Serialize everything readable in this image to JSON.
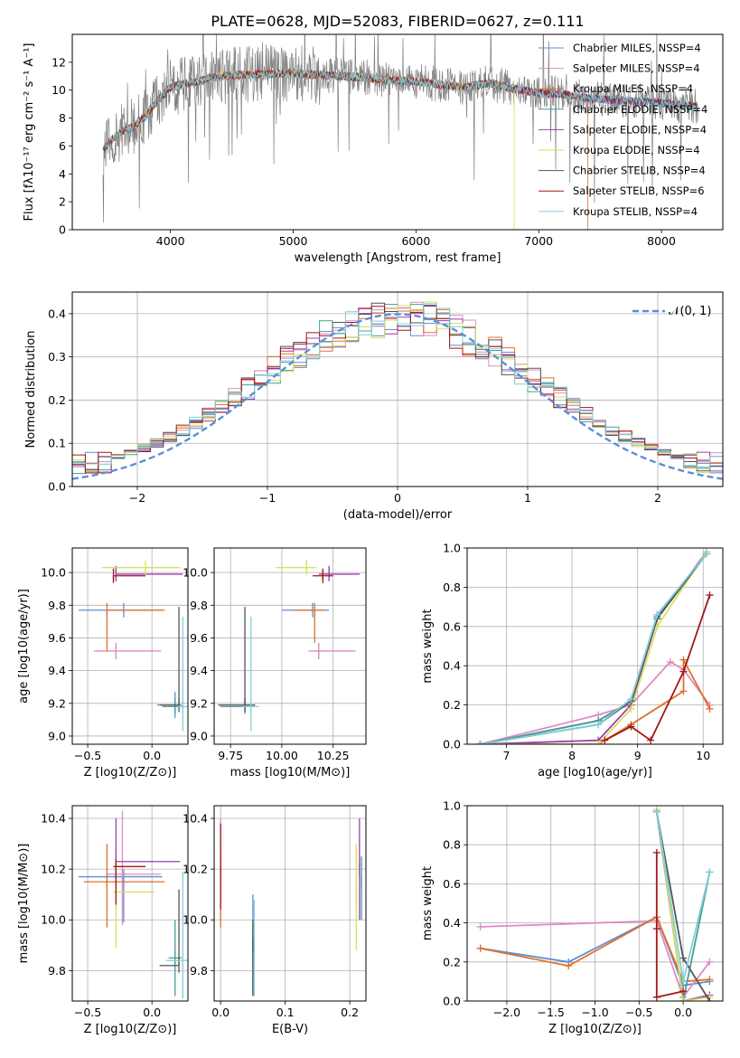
{
  "suptitle": "PLATE=0628, MJD=52083, FIBERID=0627, z=0.111",
  "series_names": [
    "Chabrier MILES",
    "Salpeter MILES",
    "Kroupa MILES",
    "Chabrier ELODIE",
    "Salpeter ELODIE",
    "Kroupa ELODIE",
    "Chabrier STELIB",
    "Salpeter STELIB",
    "Kroupa STELIB"
  ],
  "colors": [
    "#5b8fd6",
    "#e08ac3",
    "#e0702a",
    "#4a9a9a",
    "#9a3fb0",
    "#d6e05a",
    "#555555",
    "#a01818",
    "#7fd0d8",
    "#808080"
  ],
  "chart_data": [
    {
      "id": "spectrum",
      "type": "line",
      "xlabel": "wavelength [Angstrom, rest frame]",
      "ylabel": "Flux [fλ10⁻¹⁷ erg cm⁻² s⁻¹ A⁻¹]",
      "xlim": [
        3200,
        8500
      ],
      "ylim": [
        0,
        14
      ],
      "xticks": [
        4000,
        5000,
        6000,
        7000,
        8000
      ],
      "yticks": [
        0,
        2,
        4,
        6,
        8,
        10,
        12
      ],
      "legend": "upper right",
      "legend_entries": [
        "Chabrier MILES, NSSP=4",
        "Salpeter MILES, NSSP=4",
        "Kroupa MILES, NSSP=4",
        "Chabrier ELODIE, NSSP=4",
        "Salpeter ELODIE, NSSP=4",
        "Kroupa ELODIE, NSSP=4",
        "Chabrier STELIB, NSSP=4",
        "Salpeter STELIB, NSSP=6",
        "Kroupa STELIB, NSSP=4"
      ],
      "continuum": {
        "x": [
          3450,
          3500,
          3600,
          3700,
          3800,
          3900,
          4000,
          4100,
          4200,
          4300,
          4400,
          4600,
          4800,
          5000,
          5200,
          5400,
          5600,
          5800,
          6000,
          6200,
          6400,
          6600,
          6800,
          7000,
          7200,
          7400,
          7600,
          7800,
          8000,
          8200,
          8300
        ],
        "y": [
          5.6,
          6.3,
          7.0,
          7.4,
          8.2,
          9.3,
          10.2,
          10.4,
          10.6,
          10.8,
          11.0,
          11.1,
          11.2,
          11.2,
          11.1,
          11.0,
          10.9,
          10.7,
          10.6,
          10.4,
          10.2,
          10.5,
          10.1,
          9.8,
          9.7,
          9.4,
          9.3,
          9.2,
          9.1,
          8.9,
          8.8
        ]
      },
      "spectrum_noise": 1.3
    },
    {
      "id": "residuals",
      "type": "histogram",
      "xlabel": "(data-model)/error",
      "ylabel": "Normed distribution",
      "xlim": [
        -2.5,
        2.5
      ],
      "ylim": [
        0,
        0.45
      ],
      "xticks": [
        -2,
        -1,
        0,
        1,
        2
      ],
      "yticks": [
        0.0,
        0.1,
        0.2,
        0.3,
        0.4
      ],
      "grid": true,
      "legend": "upper right",
      "legend_entries": [
        "𝒩(0, 1)"
      ],
      "bins": {
        "start": -2.5,
        "width": 0.1,
        "count": 50
      },
      "gaussian": {
        "mean": 0,
        "sigma": 1
      }
    },
    {
      "id": "age_vs_Z",
      "type": "errorbar",
      "xlabel": "Z [log10(Z/Z⊙)]",
      "ylabel": "age  [log10(age/yr)]",
      "xlim": [
        -0.62,
        0.28
      ],
      "ylim": [
        8.95,
        10.15
      ],
      "xticks": [
        -0.5,
        0.0
      ],
      "yticks": [
        9.0,
        9.2,
        9.4,
        9.6,
        9.8,
        10.0
      ],
      "grid": true,
      "points": [
        {
          "s": 0,
          "x": 0.18,
          "y": 9.19,
          "xe": [
            0.14,
            0.05
          ],
          "ye": [
            0.08,
            0.08
          ]
        },
        {
          "s": 0,
          "x": -0.22,
          "y": 9.77,
          "xe": [
            0.35,
            0.3
          ],
          "ye": [
            0.0,
            0.0
          ]
        },
        {
          "s": 1,
          "x": -0.28,
          "y": 9.52,
          "xe": [
            0.17,
            0.35
          ],
          "ye": [
            0.05,
            0.05
          ]
        },
        {
          "s": 2,
          "x": -0.35,
          "y": 9.77,
          "xe": [
            0.0,
            0.45
          ],
          "ye": [
            0.25,
            0.0
          ]
        },
        {
          "s": 3,
          "x": 0.18,
          "y": 9.18,
          "xe": [
            0.1,
            0.05
          ],
          "ye": [
            0.03,
            0.03
          ]
        },
        {
          "s": 4,
          "x": -0.28,
          "y": 9.99,
          "xe": [
            0.0,
            0.52
          ],
          "ye": [
            0.02,
            0.05
          ]
        },
        {
          "s": 5,
          "x": -0.05,
          "y": 10.03,
          "xe": [
            0.34,
            0.27
          ],
          "ye": [
            0.03,
            0.0
          ]
        },
        {
          "s": 6,
          "x": 0.21,
          "y": 9.19,
          "xe": [
            0.15,
            0.0
          ],
          "ye": [
            0.0,
            0.6
          ]
        },
        {
          "s": 7,
          "x": -0.3,
          "y": 9.98,
          "xe": [
            0.0,
            0.25
          ],
          "ye": [
            0.03,
            0.0
          ]
        },
        {
          "s": 8,
          "x": 0.24,
          "y": 9.18,
          "xe": [
            0.04,
            0.04
          ],
          "ye": [
            0.15,
            0.55
          ]
        }
      ]
    },
    {
      "id": "age_vs_mass",
      "type": "errorbar",
      "xlabel": "mass [log10(M/M⊙)]",
      "ylabel": "",
      "xlim": [
        9.67,
        10.41
      ],
      "ylim": [
        8.95,
        10.15
      ],
      "xticks": [
        9.75,
        10.0,
        10.25
      ],
      "yticks": [
        9.0,
        9.2,
        9.4,
        9.6,
        9.8,
        10.0
      ],
      "grid": true,
      "points": [
        {
          "s": 0,
          "x": 10.15,
          "y": 9.77,
          "xe": [
            0.15,
            0.08
          ],
          "ye": [
            0.0,
            0.0
          ]
        },
        {
          "s": 1,
          "x": 10.18,
          "y": 9.52,
          "xe": [
            0.05,
            0.18
          ],
          "ye": [
            0.05,
            0.05
          ]
        },
        {
          "s": 2,
          "x": 10.16,
          "y": 9.77,
          "xe": [
            0.1,
            0.05
          ],
          "ye": [
            0.2,
            0.02
          ]
        },
        {
          "s": 3,
          "x": 9.82,
          "y": 9.18,
          "xe": [
            0.12,
            0.05
          ],
          "ye": [
            0.03,
            0.03
          ]
        },
        {
          "s": 4,
          "x": 10.23,
          "y": 9.99,
          "xe": [
            0.05,
            0.15
          ],
          "ye": [
            0.02,
            0.05
          ]
        },
        {
          "s": 5,
          "x": 10.12,
          "y": 10.03,
          "xe": [
            0.15,
            0.05
          ],
          "ye": [
            0.03,
            0.05
          ]
        },
        {
          "s": 6,
          "x": 9.82,
          "y": 9.19,
          "xe": [
            0.13,
            0.05
          ],
          "ye": [
            0.0,
            0.6
          ]
        },
        {
          "s": 7,
          "x": 10.2,
          "y": 9.98,
          "xe": [
            0.05,
            0.05
          ],
          "ye": [
            0.03,
            0.03
          ]
        },
        {
          "s": 8,
          "x": 9.85,
          "y": 9.18,
          "xe": [
            0.04,
            0.04
          ],
          "ye": [
            0.15,
            0.55
          ]
        }
      ]
    },
    {
      "id": "mass_weight_vs_age",
      "type": "line",
      "xlabel": "age  [log10(age/yr)]",
      "ylabel": "mass weight",
      "xlim": [
        6.4,
        10.3
      ],
      "ylim": [
        0.0,
        1.0
      ],
      "xticks": [
        7,
        8,
        9,
        10
      ],
      "yticks": [
        0.0,
        0.2,
        0.4,
        0.6,
        0.8,
        1.0
      ],
      "grid": true,
      "series": [
        {
          "s": 0,
          "x": [
            6.6,
            8.4,
            8.9,
            9.3,
            10.05
          ],
          "y": [
            0.0,
            0.12,
            0.22,
            0.65,
            0.97
          ]
        },
        {
          "s": 1,
          "x": [
            6.6,
            8.4,
            8.9,
            9.5,
            9.7,
            10.1
          ],
          "y": [
            0.0,
            0.15,
            0.2,
            0.42,
            0.38,
            0.2
          ]
        },
        {
          "s": 2,
          "x": [
            6.6,
            8.4,
            8.9,
            9.7,
            9.7,
            10.1
          ],
          "y": [
            0.0,
            0.0,
            0.1,
            0.27,
            0.43,
            0.18
          ]
        },
        {
          "s": 3,
          "x": [
            6.6,
            8.4,
            8.9,
            9.3,
            10.05
          ],
          "y": [
            0.0,
            0.12,
            0.22,
            0.66,
            0.97
          ]
        },
        {
          "s": 4,
          "x": [
            6.6,
            8.4,
            8.9,
            9.3,
            10.05
          ],
          "y": [
            0.0,
            0.02,
            0.2,
            0.64,
            0.98
          ]
        },
        {
          "s": 5,
          "x": [
            6.6,
            8.4,
            8.9,
            9.3,
            10.05
          ],
          "y": [
            0.0,
            0.0,
            0.18,
            0.6,
            0.98
          ]
        },
        {
          "s": 6,
          "x": [
            6.6,
            8.4,
            8.9,
            9.3,
            10.05
          ],
          "y": [
            0.0,
            0.1,
            0.22,
            0.64,
            0.97
          ]
        },
        {
          "s": 7,
          "x": [
            8.5,
            8.9,
            9.2,
            9.7,
            10.1
          ],
          "y": [
            0.02,
            0.09,
            0.02,
            0.37,
            0.76
          ]
        },
        {
          "s": 8,
          "x": [
            6.6,
            8.4,
            8.9,
            9.3,
            10.05
          ],
          "y": [
            0.0,
            0.1,
            0.23,
            0.66,
            0.97
          ]
        }
      ]
    },
    {
      "id": "mass_vs_Z",
      "type": "errorbar",
      "xlabel": "Z [log10(Z/Z⊙)]",
      "ylabel": "mass [log10(M/M⊙)]",
      "xlim": [
        -0.62,
        0.28
      ],
      "ylim": [
        9.68,
        10.45
      ],
      "xticks": [
        -0.5,
        0.0
      ],
      "yticks": [
        9.8,
        10.0,
        10.2,
        10.4
      ],
      "grid": true,
      "points": [
        {
          "s": 0,
          "x": -0.22,
          "y": 10.17,
          "xe": [
            0.35,
            0.3
          ],
          "ye": [
            0.18,
            0.0
          ]
        },
        {
          "s": 1,
          "x": -0.23,
          "y": 10.18,
          "xe": [
            0.12,
            0.3
          ],
          "ye": [
            0.2,
            0.25
          ]
        },
        {
          "s": 2,
          "x": -0.35,
          "y": 10.15,
          "xe": [
            0.18,
            0.45
          ],
          "ye": [
            0.18,
            0.15
          ]
        },
        {
          "s": 3,
          "x": 0.18,
          "y": 9.85,
          "xe": [
            0.05,
            0.05
          ],
          "ye": [
            0.15,
            0.15
          ]
        },
        {
          "s": 4,
          "x": -0.28,
          "y": 10.23,
          "xe": [
            0.0,
            0.5
          ],
          "ye": [
            0.12,
            0.17
          ]
        },
        {
          "s": 5,
          "x": -0.28,
          "y": 10.11,
          "xe": [
            0.02,
            0.3
          ],
          "ye": [
            0.22,
            0.02
          ]
        },
        {
          "s": 6,
          "x": 0.21,
          "y": 9.82,
          "xe": [
            0.15,
            0.0
          ],
          "ye": [
            0.0,
            0.3
          ]
        },
        {
          "s": 7,
          "x": -0.28,
          "y": 10.21,
          "xe": [
            0.02,
            0.23
          ],
          "ye": [
            0.15,
            0.0
          ]
        },
        {
          "s": 8,
          "x": 0.24,
          "y": 9.84,
          "xe": [
            0.13,
            0.04
          ],
          "ye": [
            0.15,
            0.35
          ]
        }
      ]
    },
    {
      "id": "mass_vs_EBV",
      "type": "errorbar",
      "xlabel": "E(B-V)",
      "ylabel": "",
      "xlim": [
        -0.01,
        0.225
      ],
      "ylim": [
        9.68,
        10.45
      ],
      "xticks": [
        0.0,
        0.1,
        0.2
      ],
      "yticks": [
        9.8,
        10.0,
        10.2,
        10.4
      ],
      "grid": true,
      "points": [
        {
          "s": 1,
          "x": 0.0,
          "y": 10.2,
          "xe": [
            0,
            0
          ],
          "ye": [
            0.2,
            0.2
          ]
        },
        {
          "s": 2,
          "x": 0.0,
          "y": 10.15,
          "xe": [
            0,
            0
          ],
          "ye": [
            0.18,
            0.15
          ]
        },
        {
          "s": 7,
          "x": 0.0,
          "y": 10.21,
          "xe": [
            0,
            0
          ],
          "ye": [
            0.17,
            0.17
          ]
        },
        {
          "s": 0,
          "x": 0.05,
          "y": 9.9,
          "xe": [
            0,
            0
          ],
          "ye": [
            0.2,
            0.2
          ]
        },
        {
          "s": 8,
          "x": 0.052,
          "y": 9.9,
          "xe": [
            0,
            0
          ],
          "ye": [
            0.2,
            0.18
          ]
        },
        {
          "s": 6,
          "x": 0.05,
          "y": 9.9,
          "xe": [
            0,
            0
          ],
          "ye": [
            0.2,
            0.1
          ]
        },
        {
          "s": 5,
          "x": 0.21,
          "y": 10.1,
          "xe": [
            0,
            0
          ],
          "ye": [
            0.22,
            0.2
          ]
        },
        {
          "s": 4,
          "x": 0.215,
          "y": 10.2,
          "xe": [
            0,
            0
          ],
          "ye": [
            0.2,
            0.2
          ]
        },
        {
          "s": 3,
          "x": 0.218,
          "y": 10.15,
          "xe": [
            0,
            0
          ],
          "ye": [
            0.15,
            0.1
          ]
        }
      ]
    },
    {
      "id": "mass_weight_vs_Z",
      "type": "line",
      "xlabel": "Z [log10(Z/Z⊙)]",
      "ylabel": "mass weight",
      "xlim": [
        -2.45,
        0.45
      ],
      "ylim": [
        0.0,
        1.0
      ],
      "xticks": [
        -2.0,
        -1.5,
        -1.0,
        -0.5,
        0.0
      ],
      "yticks": [
        0.0,
        0.2,
        0.4,
        0.6,
        0.8,
        1.0
      ],
      "grid": true,
      "series": [
        {
          "s": 0,
          "x": [
            -2.3,
            -1.3,
            -0.3,
            0.0,
            0.3
          ],
          "y": [
            0.27,
            0.2,
            0.43,
            0.08,
            0.1
          ]
        },
        {
          "s": 1,
          "x": [
            -2.3,
            -0.3,
            0.0,
            0.3
          ],
          "y": [
            0.38,
            0.41,
            0.02,
            0.2
          ]
        },
        {
          "s": 2,
          "x": [
            -2.3,
            -1.3,
            -0.3,
            0.0,
            0.3
          ],
          "y": [
            0.27,
            0.18,
            0.43,
            0.1,
            0.11
          ]
        },
        {
          "s": 3,
          "x": [
            -0.3,
            0.0,
            0.3
          ],
          "y": [
            0.97,
            0.0,
            0.66
          ]
        },
        {
          "s": 4,
          "x": [
            -0.3,
            0.0,
            0.3
          ],
          "y": [
            0.97,
            0.0,
            0.03
          ]
        },
        {
          "s": 5,
          "x": [
            -0.3,
            0.0,
            0.3
          ],
          "y": [
            0.98,
            0.0,
            0.02
          ]
        },
        {
          "s": 6,
          "x": [
            -0.3,
            0.0,
            0.3
          ],
          "y": [
            0.97,
            0.22,
            0.0
          ]
        },
        {
          "s": 7,
          "x": [
            -0.3,
            -0.3,
            -0.3,
            0.0
          ],
          "y": [
            0.76,
            0.37,
            0.02,
            0.05
          ]
        },
        {
          "s": 8,
          "x": [
            -0.3,
            0.0,
            0.3
          ],
          "y": [
            0.97,
            0.1,
            0.66
          ]
        }
      ]
    }
  ]
}
